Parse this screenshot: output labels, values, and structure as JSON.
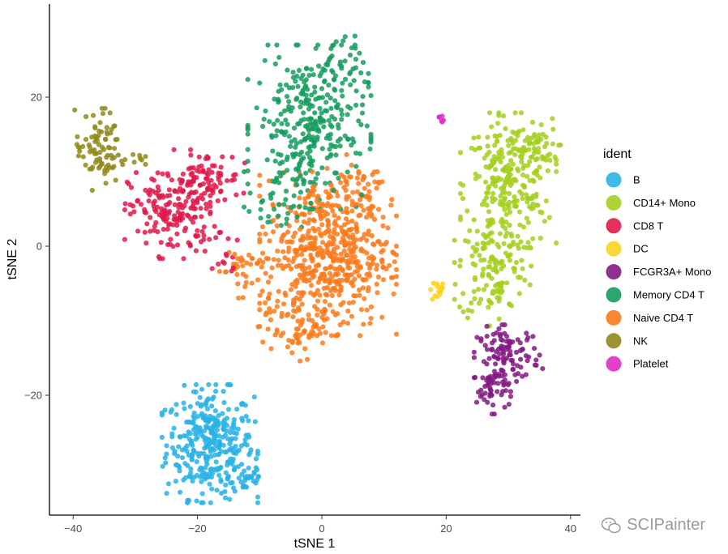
{
  "chart_data": {
    "type": "scatter",
    "title": "",
    "xlabel": "tSNE 1",
    "ylabel": "tSNE 2",
    "xlim": [
      -43.8,
      41.5
    ],
    "ylim": [
      -36.1,
      32.5
    ],
    "xticks": [
      -40,
      -20,
      0,
      20,
      40
    ],
    "yticks": [
      -20,
      0,
      20
    ],
    "xtick_labels": [
      "−40",
      "−20",
      "0",
      "20",
      "40"
    ],
    "ytick_labels": [
      "−20",
      "0",
      "20"
    ],
    "grid": false,
    "legend": {
      "title": "ident",
      "placement": "right"
    },
    "series": [
      {
        "name": "B",
        "color": "#29b2e6",
        "components": [
          {
            "cx": -18,
            "cy": -26.5,
            "sx": 3.5,
            "sy": 3.6,
            "n": 330
          },
          {
            "cx": -12,
            "cy": -31,
            "sx": 1.5,
            "sy": 1.2,
            "n": 30
          }
        ]
      },
      {
        "name": "CD14+ Mono",
        "color": "#a4cf1e",
        "components": [
          {
            "cx": 30,
            "cy": 8,
            "sx": 3.5,
            "sy": 4.5,
            "n": 260
          },
          {
            "cx": 27.5,
            "cy": -3,
            "sx": 2.8,
            "sy": 3.5,
            "n": 120
          },
          {
            "cx": 34,
            "cy": 13,
            "sx": 2,
            "sy": 1.5,
            "n": 40
          }
        ]
      },
      {
        "name": "CD8 T",
        "color": "#e0194a",
        "components": [
          {
            "cx": -24,
            "cy": 4.5,
            "sx": 3.5,
            "sy": 2.8,
            "n": 170
          },
          {
            "cx": -19,
            "cy": 9,
            "sx": 3,
            "sy": 1.8,
            "n": 80
          },
          {
            "cx": -15,
            "cy": -2,
            "sx": 1.2,
            "sy": 2,
            "n": 12
          }
        ]
      },
      {
        "name": "DC",
        "color": "#fcd420",
        "components": [
          {
            "cx": 19,
            "cy": -5.8,
            "sx": 0.9,
            "sy": 0.6,
            "n": 16
          }
        ]
      },
      {
        "name": "FCGR3A+ Mono",
        "color": "#821a82",
        "components": [
          {
            "cx": 30,
            "cy": -14.5,
            "sx": 2.5,
            "sy": 1.8,
            "n": 100
          },
          {
            "cx": 27.5,
            "cy": -19,
            "sx": 1.3,
            "sy": 1.6,
            "n": 50
          }
        ]
      },
      {
        "name": "Memory CD4 T",
        "color": "#159c5e",
        "components": [
          {
            "cx": -2,
            "cy": 16,
            "sx": 4.5,
            "sy": 5,
            "n": 300
          },
          {
            "cx": 2,
            "cy": 24,
            "sx": 2.5,
            "sy": 2,
            "n": 40
          },
          {
            "cx": -7,
            "cy": 6,
            "sx": 2.5,
            "sy": 2.5,
            "n": 40
          }
        ]
      },
      {
        "name": "Naive CD4 T",
        "color": "#fc7a1c",
        "components": [
          {
            "cx": 1,
            "cy": -1,
            "sx": 5,
            "sy": 5,
            "n": 520
          },
          {
            "cx": -4,
            "cy": -11,
            "sx": 3,
            "sy": 2,
            "n": 60
          },
          {
            "cx": -13,
            "cy": -3,
            "sx": 2,
            "sy": 1.8,
            "n": 40
          },
          {
            "cx": 6,
            "cy": 7,
            "sx": 3,
            "sy": 2.5,
            "n": 60
          }
        ]
      },
      {
        "name": "NK",
        "color": "#8f8a1a",
        "components": [
          {
            "cx": -36,
            "cy": 13,
            "sx": 1.8,
            "sy": 2.5,
            "n": 80
          },
          {
            "cx": -31,
            "cy": 12,
            "sx": 1.2,
            "sy": 0.6,
            "n": 12
          }
        ]
      },
      {
        "name": "Platelet",
        "color": "#e02cc8",
        "components": [
          {
            "cx": 19.3,
            "cy": 17,
            "sx": 0.3,
            "sy": 0.3,
            "n": 6
          }
        ]
      }
    ]
  },
  "watermark": {
    "text": "SCIPainter",
    "icon": "wechat-icon"
  }
}
